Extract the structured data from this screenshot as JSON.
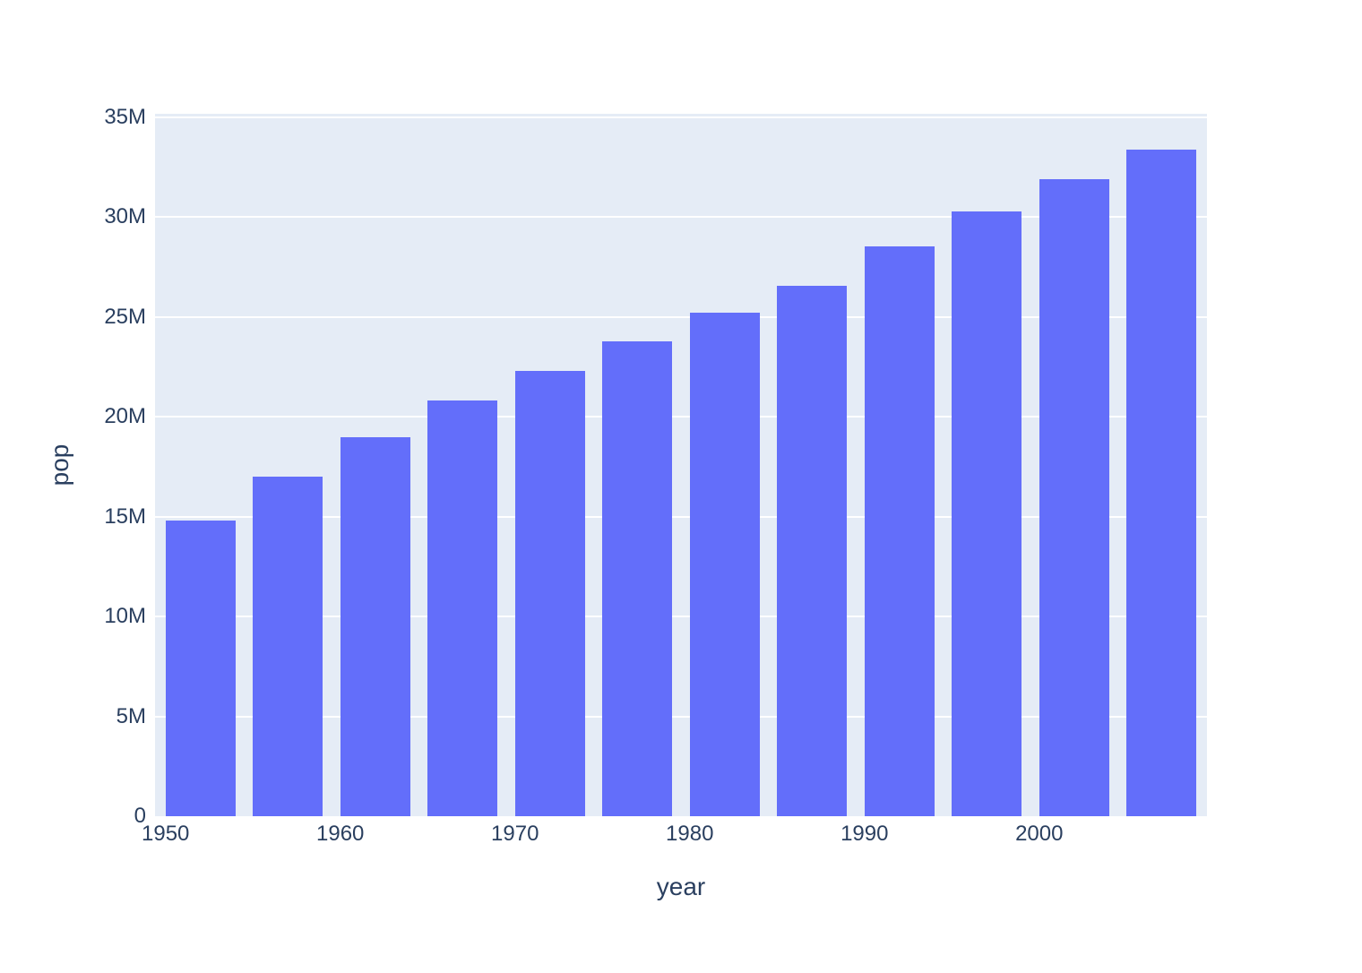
{
  "chart_data": {
    "type": "bar",
    "title": "",
    "xlabel": "year",
    "ylabel": "pop",
    "x": [
      1952,
      1957,
      1962,
      1967,
      1972,
      1977,
      1982,
      1987,
      1992,
      1997,
      2002,
      2007
    ],
    "values": [
      14785584,
      17010154,
      18985849,
      20819767,
      22284500,
      23796400,
      25201900,
      26549700,
      28523502,
      30305843,
      31902268,
      33390141
    ],
    "bar_width_years": 4,
    "xlim": [
      1949.4,
      2009.6
    ],
    "ylim": [
      0,
      35180000
    ],
    "x_ticks": [
      {
        "value": 1950,
        "label": "1950"
      },
      {
        "value": 1960,
        "label": "1960"
      },
      {
        "value": 1970,
        "label": "1970"
      },
      {
        "value": 1980,
        "label": "1980"
      },
      {
        "value": 1990,
        "label": "1990"
      },
      {
        "value": 2000,
        "label": "2000"
      }
    ],
    "y_ticks": [
      {
        "value": 0,
        "label": "0"
      },
      {
        "value": 5000000,
        "label": "5M"
      },
      {
        "value": 10000000,
        "label": "10M"
      },
      {
        "value": 15000000,
        "label": "15M"
      },
      {
        "value": 20000000,
        "label": "20M"
      },
      {
        "value": 25000000,
        "label": "25M"
      },
      {
        "value": 30000000,
        "label": "30M"
      },
      {
        "value": 35000000,
        "label": "35M"
      }
    ],
    "grid": true,
    "legend": false,
    "colors": {
      "bar": "#636EFA",
      "plot_background": "#E5ECF6",
      "gridline": "#FFFFFF",
      "text": "#2A3F5F",
      "page_background": "#FFFFFF"
    }
  }
}
